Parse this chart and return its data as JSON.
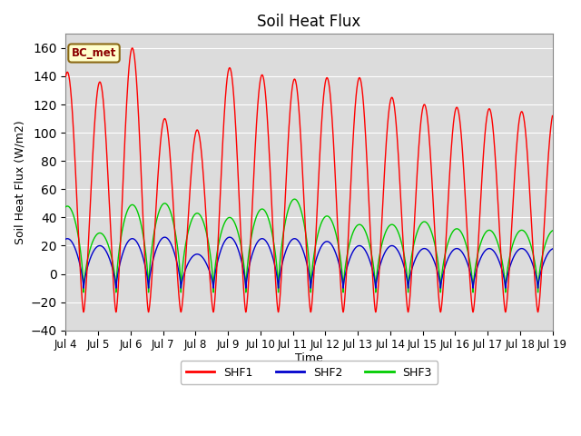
{
  "title": "Soil Heat Flux",
  "ylabel": "Soil Heat Flux (W/m2)",
  "xlabel": "Time",
  "ylim": [
    -40,
    170
  ],
  "yticks": [
    -40,
    -20,
    0,
    20,
    40,
    60,
    80,
    100,
    120,
    140,
    160
  ],
  "bg_color": "#dcdcdc",
  "legend_label": "BC_met",
  "legend_bg": "#ffffcc",
  "legend_edge": "#8B6914",
  "colors": {
    "SHF1": "#ff0000",
    "SHF2": "#0000cc",
    "SHF3": "#00cc00"
  },
  "linewidth": 1.0,
  "x_tick_labels": [
    "Jul 4",
    "Jul 5",
    "Jul 6",
    "Jul 7",
    "Jul 8",
    "Jul 9",
    "Jul 10",
    "Jul 11",
    "Jul 12",
    "Jul 13",
    "Jul 14",
    "Jul 15",
    "Jul 16",
    "Jul 17",
    "Jul 18",
    "Jul 19"
  ],
  "shf1_peaks": [
    143,
    136,
    160,
    110,
    102,
    146,
    141,
    138,
    139,
    139,
    125,
    120,
    118,
    117,
    115
  ],
  "shf2_peaks": [
    25,
    20,
    25,
    26,
    14,
    26,
    25,
    25,
    23,
    20,
    20,
    18,
    18,
    18,
    18
  ],
  "shf3_peaks": [
    48,
    29,
    49,
    50,
    43,
    40,
    46,
    53,
    41,
    35,
    35,
    37,
    32,
    31,
    31
  ],
  "shf1_night": -27,
  "shf2_night": -10,
  "shf3_night": -13,
  "n_days": 15,
  "n_per_day": 288
}
